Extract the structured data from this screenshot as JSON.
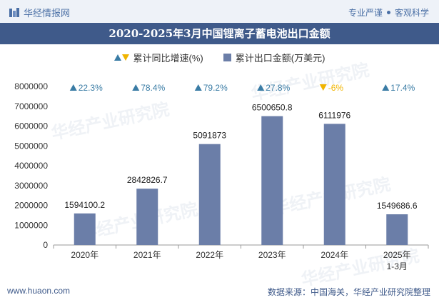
{
  "header": {
    "brand": "华经情报网",
    "tagline_a": "专业严谨",
    "tagline_b": "客观科学"
  },
  "footer": {
    "website": "www.huaon.com",
    "source": "数据来源：中国海关，华经产业研究院整理"
  },
  "watermark": "华经产业研究院",
  "legend": {
    "growth": "累计同比增速(%)",
    "amount": "累计出口金额(万美元)"
  },
  "colors": {
    "bar": "#6b7ea8",
    "up": "#3a7ca5",
    "down": "#f0b400",
    "title_bg": "#3f5a8a"
  },
  "chart_data": {
    "type": "bar",
    "title": "2020-2025年3月中国锂离子蓄电池出口金额",
    "categories": [
      "2020年",
      "2021年",
      "2022年",
      "2023年",
      "2024年",
      "2025年 1-3月"
    ],
    "category_lines": [
      [
        "2020年"
      ],
      [
        "2021年"
      ],
      [
        "2022年"
      ],
      [
        "2023年"
      ],
      [
        "2024年"
      ],
      [
        "2025年",
        "1-3月"
      ]
    ],
    "ylim": [
      0,
      8000000
    ],
    "yticks": [
      0,
      1000000,
      2000000,
      3000000,
      4000000,
      5000000,
      6000000,
      7000000,
      8000000
    ],
    "series": [
      {
        "name": "累计出口金额(万美元)",
        "values": [
          1594100.2,
          2842826.7,
          5091873,
          6500650.8,
          6111976,
          1549686.6
        ],
        "labels": [
          "1594100.2",
          "2842826.7",
          "5091873",
          "6500650.8",
          "6111976",
          "1549686.6"
        ]
      },
      {
        "name": "累计同比增速(%)",
        "values": [
          22.3,
          78.4,
          79.2,
          27.8,
          -6,
          17.4
        ],
        "labels": [
          "22.3%",
          "78.4%",
          "79.2%",
          "27.8%",
          "-6%",
          "17.4%"
        ]
      }
    ]
  }
}
